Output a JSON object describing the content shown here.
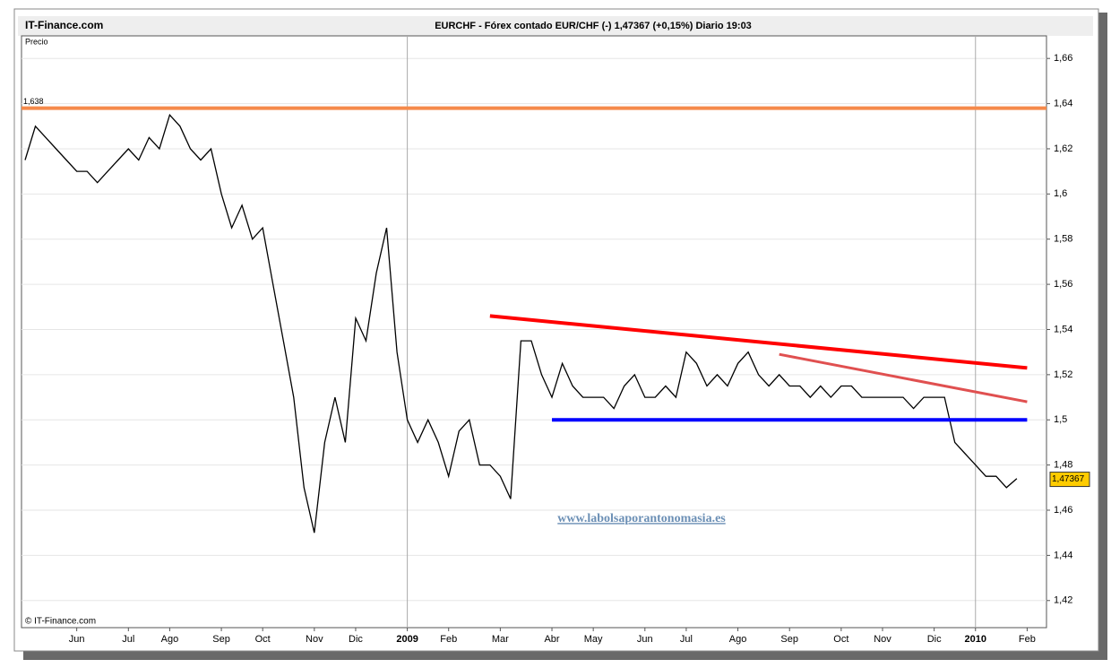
{
  "header": "IT-Finance.com",
  "chart_data": {
    "type": "line",
    "title": "EURCHF - Fórex contado EUR/CHF (-)    1,47367 (+0,15%)    Diario  19:03",
    "y_label": "Precio",
    "copyright": "© IT-Finance.com",
    "watermark": "www.labolsaporantonomasia.es",
    "categories": [
      null,
      null,
      null,
      null,
      null,
      "Jun",
      null,
      null,
      null,
      null,
      "Jul",
      null,
      null,
      null,
      "Ago",
      null,
      null,
      null,
      null,
      "Sep",
      null,
      null,
      null,
      "Oct",
      null,
      null,
      null,
      null,
      "Nov",
      null,
      null,
      null,
      "Dic",
      null,
      null,
      null,
      null,
      "2009",
      null,
      null,
      null,
      "Feb",
      null,
      null,
      null,
      null,
      "Mar",
      null,
      null,
      null,
      null,
      "Abr",
      null,
      null,
      null,
      "May",
      null,
      null,
      null,
      null,
      "Jun",
      null,
      null,
      null,
      "Jul",
      null,
      null,
      null,
      null,
      "Ago",
      null,
      null,
      null,
      null,
      "Sep",
      null,
      null,
      null,
      null,
      "Oct",
      null,
      null,
      null,
      "Nov",
      null,
      null,
      null,
      null,
      "Dic",
      null,
      null,
      null,
      "2010",
      null,
      null,
      null,
      null,
      "Feb"
    ],
    "series": [
      {
        "name": "EURCHF",
        "color": "#000000",
        "values": [
          1.615,
          1.63,
          1.625,
          1.62,
          1.615,
          1.61,
          1.61,
          1.605,
          1.61,
          1.615,
          1.62,
          1.615,
          1.625,
          1.62,
          1.635,
          1.63,
          1.62,
          1.615,
          1.62,
          1.6,
          1.585,
          1.595,
          1.58,
          1.585,
          1.56,
          1.535,
          1.51,
          1.47,
          1.45,
          1.49,
          1.51,
          1.49,
          1.545,
          1.535,
          1.565,
          1.585,
          1.53,
          1.5,
          1.49,
          1.5,
          1.49,
          1.475,
          1.495,
          1.5,
          1.48,
          1.48,
          1.475,
          1.465,
          1.535,
          1.535,
          1.52,
          1.51,
          1.525,
          1.515,
          1.51,
          1.51,
          1.51,
          1.505,
          1.515,
          1.52,
          1.51,
          1.51,
          1.515,
          1.51,
          1.53,
          1.525,
          1.515,
          1.52,
          1.515,
          1.525,
          1.53,
          1.52,
          1.515,
          1.52,
          1.515,
          1.515,
          1.51,
          1.515,
          1.51,
          1.515,
          1.515,
          1.51,
          1.51,
          1.51,
          1.51,
          1.51,
          1.505,
          1.51,
          1.51,
          1.51,
          1.49,
          1.485,
          1.48,
          1.475,
          1.475,
          1.47,
          1.474,
          null
        ]
      }
    ],
    "ylim": [
      1.408,
      1.67
    ],
    "yticks": [
      {
        "value": 1.42,
        "label": "1,42"
      },
      {
        "value": 1.44,
        "label": "1,44"
      },
      {
        "value": 1.46,
        "label": "1,46"
      },
      {
        "value": 1.48,
        "label": "1,48"
      },
      {
        "value": 1.5,
        "label": "1,5"
      },
      {
        "value": 1.52,
        "label": "1,52"
      },
      {
        "value": 1.54,
        "label": "1,54"
      },
      {
        "value": 1.56,
        "label": "1,56"
      },
      {
        "value": 1.58,
        "label": "1,58"
      },
      {
        "value": 1.6,
        "label": "1,6"
      },
      {
        "value": 1.62,
        "label": "1,62"
      },
      {
        "value": 1.64,
        "label": "1,64"
      },
      {
        "value": 1.66,
        "label": "1,66"
      }
    ],
    "grid": true,
    "hline": {
      "value": 1.638,
      "label": "1,638",
      "color": "#f58a4b"
    },
    "last_price": {
      "value": 1.47367,
      "label": "1,47367",
      "color": "#ffcc00"
    },
    "trendlines": [
      {
        "color": "#ff0000",
        "start_index": 45,
        "start": 1.546,
        "end_index": 97,
        "end": 1.523
      },
      {
        "color": "#e05050",
        "start_index": 73,
        "start": 1.529,
        "end_index": 97,
        "end": 1.508
      },
      {
        "color": "#0000ff",
        "start_index": 51,
        "start": 1.5,
        "end_index": 97,
        "end": 1.5
      }
    ]
  }
}
